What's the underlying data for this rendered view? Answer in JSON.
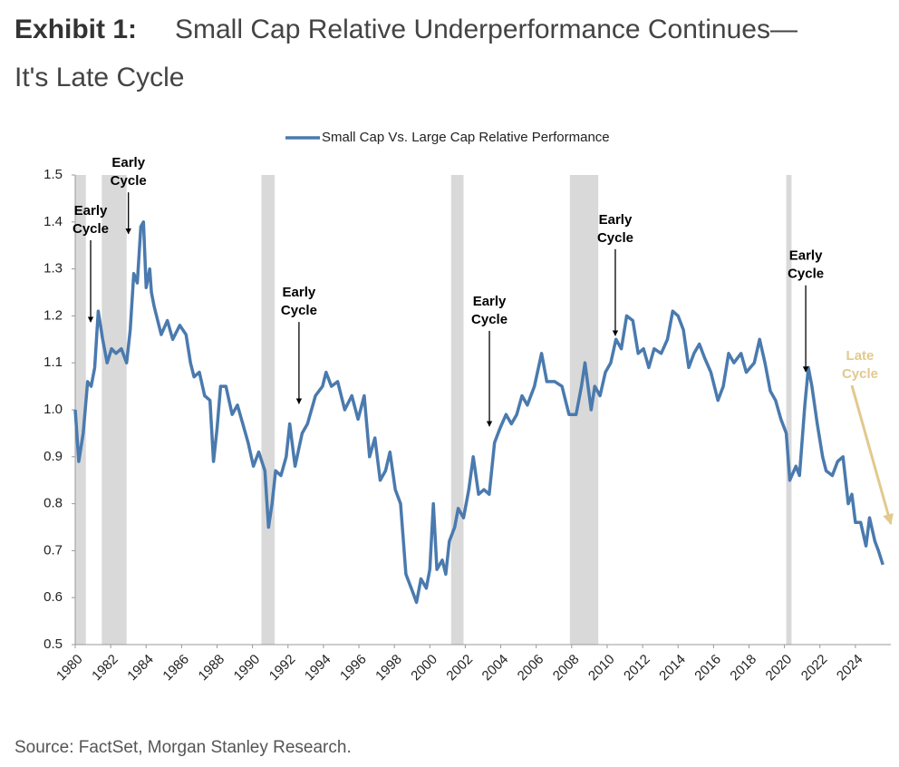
{
  "chart_data": {
    "type": "line",
    "title_label": "Exhibit 1:",
    "title": [
      "Small Cap Relative Underperformance Continues—",
      "It's Late Cycle"
    ],
    "source": "Source: FactSet, Morgan Stanley Research.",
    "xlim": [
      1980,
      2026
    ],
    "xticks": [
      1980,
      1982,
      1984,
      1986,
      1988,
      1990,
      1992,
      1994,
      1996,
      1998,
      2000,
      2002,
      2004,
      2006,
      2008,
      2010,
      2012,
      2014,
      2016,
      2018,
      2020,
      2022,
      2024
    ],
    "ylim": [
      0.5,
      1.5
    ],
    "yticks": [
      0.5,
      0.6,
      0.7,
      0.8,
      0.9,
      {
        "value": 1.0,
        "label": "1.0"
      },
      1.1,
      1.2,
      1.3,
      1.4,
      1.5
    ],
    "grid": false,
    "legend": "top",
    "shaded_periods": [
      [
        1980.0,
        1980.6
      ],
      [
        1981.5,
        1982.9
      ],
      [
        1990.5,
        1991.25
      ],
      [
        2001.2,
        2001.9
      ],
      [
        2007.9,
        2009.5
      ],
      [
        2020.1,
        2020.4
      ]
    ],
    "shade_color": "#d9d9d9",
    "series": [
      {
        "name": "Small Cap Vs. Large Cap Relative Performance",
        "color": "#4a7aae",
        "x": [
          1980.0,
          1980.2,
          1980.45,
          1980.7,
          1980.9,
          1981.1,
          1981.3,
          1981.55,
          1981.8,
          1982.05,
          1982.3,
          1982.6,
          1982.9,
          1983.1,
          1983.3,
          1983.5,
          1983.7,
          1983.85,
          1984.0,
          1984.2,
          1984.3,
          1984.45,
          1984.85,
          1985.2,
          1985.5,
          1985.9,
          1986.25,
          1986.5,
          1986.7,
          1987.0,
          1987.3,
          1987.6,
          1987.8,
          1988.0,
          1988.2,
          1988.5,
          1988.85,
          1989.15,
          1989.45,
          1989.75,
          1990.05,
          1990.35,
          1990.7,
          1990.9,
          1991.1,
          1991.3,
          1991.6,
          1991.9,
          1992.1,
          1992.4,
          1992.8,
          1993.1,
          1993.55,
          1993.95,
          1994.15,
          1994.45,
          1994.8,
          1995.2,
          1995.6,
          1995.95,
          1996.3,
          1996.6,
          1996.9,
          1997.2,
          1997.5,
          1997.75,
          1998.05,
          1998.35,
          1998.65,
          1998.95,
          1999.25,
          1999.5,
          1999.8,
          2000.0,
          2000.2,
          2000.4,
          2000.7,
          2000.9,
          2001.1,
          2001.4,
          2001.6,
          2001.9,
          2002.2,
          2002.45,
          2002.75,
          2003.05,
          2003.35,
          2003.65,
          2003.95,
          2004.3,
          2004.6,
          2004.9,
          2005.2,
          2005.5,
          2005.9,
          2006.3,
          2006.6,
          2007.05,
          2007.45,
          2007.85,
          2008.25,
          2008.55,
          2008.75,
          2009.1,
          2009.3,
          2009.6,
          2009.9,
          2010.2,
          2010.5,
          2010.8,
          2011.1,
          2011.45,
          2011.75,
          2012.05,
          2012.35,
          2012.65,
          2013.05,
          2013.4,
          2013.7,
          2014.0,
          2014.3,
          2014.6,
          2014.9,
          2015.2,
          2015.5,
          2015.85,
          2016.25,
          2016.55,
          2016.85,
          2017.15,
          2017.55,
          2017.85,
          2018.3,
          2018.6,
          2018.9,
          2019.2,
          2019.5,
          2019.8,
          2020.1,
          2020.3,
          2020.65,
          2020.85,
          2021.15,
          2021.35,
          2021.55,
          2021.85,
          2022.15,
          2022.35,
          2022.7,
          2023.0,
          2023.3,
          2023.6,
          2023.8,
          2024.0,
          2024.3,
          2024.6,
          2024.8,
          2025.1,
          2025.3,
          2025.55
        ],
        "values": [
          1.0,
          0.89,
          0.95,
          1.06,
          1.05,
          1.09,
          1.21,
          1.15,
          1.1,
          1.13,
          1.12,
          1.13,
          1.1,
          1.17,
          1.29,
          1.27,
          1.39,
          1.4,
          1.26,
          1.3,
          1.25,
          1.22,
          1.16,
          1.19,
          1.15,
          1.18,
          1.16,
          1.1,
          1.07,
          1.08,
          1.03,
          1.02,
          0.89,
          0.96,
          1.05,
          1.05,
          0.99,
          1.01,
          0.97,
          0.93,
          0.88,
          0.91,
          0.87,
          0.75,
          0.8,
          0.87,
          0.86,
          0.9,
          0.97,
          0.88,
          0.95,
          0.97,
          1.03,
          1.05,
          1.08,
          1.05,
          1.06,
          1.0,
          1.03,
          0.98,
          1.03,
          0.9,
          0.94,
          0.85,
          0.87,
          0.91,
          0.83,
          0.8,
          0.65,
          0.62,
          0.59,
          0.64,
          0.62,
          0.66,
          0.8,
          0.66,
          0.68,
          0.65,
          0.72,
          0.75,
          0.79,
          0.77,
          0.83,
          0.9,
          0.82,
          0.83,
          0.82,
          0.93,
          0.96,
          0.99,
          0.97,
          0.99,
          1.03,
          1.01,
          1.05,
          1.12,
          1.06,
          1.06,
          1.05,
          0.99,
          0.99,
          1.05,
          1.1,
          1.0,
          1.05,
          1.03,
          1.08,
          1.1,
          1.15,
          1.13,
          1.2,
          1.19,
          1.12,
          1.13,
          1.09,
          1.13,
          1.12,
          1.15,
          1.21,
          1.2,
          1.17,
          1.09,
          1.12,
          1.14,
          1.11,
          1.08,
          1.02,
          1.05,
          1.12,
          1.1,
          1.12,
          1.08,
          1.1,
          1.15,
          1.1,
          1.04,
          1.02,
          0.98,
          0.95,
          0.85,
          0.88,
          0.86,
          1.01,
          1.09,
          1.05,
          0.97,
          0.9,
          0.87,
          0.86,
          0.89,
          0.9,
          0.8,
          0.82,
          0.76,
          0.76,
          0.71,
          0.77,
          0.72,
          0.7,
          0.67
        ]
      }
    ],
    "annotations": [
      {
        "text": [
          "Early",
          "Cycle"
        ],
        "from": [
          1980.87,
          1.361
        ],
        "xy": [
          1980.87,
          1.187
        ],
        "color": "#000000"
      },
      {
        "text": [
          "Early",
          "Cycle"
        ],
        "from": [
          1983.0,
          1.463
        ],
        "xy": [
          1983.0,
          1.375
        ],
        "color": "#000000"
      },
      {
        "text": [
          "Early",
          "Cycle"
        ],
        "from": [
          1992.62,
          1.187
        ],
        "xy": [
          1992.62,
          1.013
        ],
        "color": "#000000"
      },
      {
        "text": [
          "Early",
          "Cycle"
        ],
        "from": [
          2003.36,
          1.168
        ],
        "xy": [
          2003.36,
          0.965
        ],
        "color": "#000000"
      },
      {
        "text": [
          "Early",
          "Cycle"
        ],
        "from": [
          2010.46,
          1.342
        ],
        "xy": [
          2010.46,
          1.158
        ],
        "color": "#000000"
      },
      {
        "text": [
          "Early",
          "Cycle"
        ],
        "from": [
          2021.2,
          1.265
        ],
        "xy": [
          2021.2,
          1.081
        ],
        "color": "#000000"
      },
      {
        "text": [
          "Late",
          "Cycle"
        ],
        "from": [
          2023.8,
          1.052
        ],
        "xy": [
          2026.0,
          0.757
        ],
        "color": "#e2c98d"
      }
    ]
  }
}
